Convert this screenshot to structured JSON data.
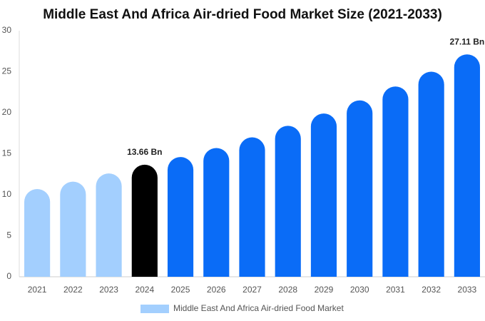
{
  "chart_data": {
    "type": "bar",
    "title": "Middle East And Africa Air-dried Food Market Size (2021-2033)",
    "categories": [
      "2021",
      "2022",
      "2023",
      "2024",
      "2025",
      "2026",
      "2027",
      "2028",
      "2029",
      "2030",
      "2031",
      "2032",
      "2033"
    ],
    "series": [
      {
        "name": "Middle East And Africa Air-dried Food Market",
        "color": "#a3cffe",
        "colors": [
          "#a3cffe",
          "#a3cffe",
          "#a3cffe",
          "#000000",
          "#0a6cf7",
          "#0a6cf7",
          "#0a6cf7",
          "#0a6cf7",
          "#0a6cf7",
          "#0a6cf7",
          "#0a6cf7",
          "#0a6cf7",
          "#0a6cf7"
        ],
        "values": [
          10.7,
          11.6,
          12.6,
          13.66,
          14.6,
          15.7,
          17.0,
          18.4,
          19.9,
          21.5,
          23.2,
          25.0,
          27.11
        ],
        "value_labels": [
          null,
          null,
          null,
          "13.66 Bn",
          null,
          null,
          null,
          null,
          null,
          null,
          null,
          null,
          "27.11 Bn"
        ]
      }
    ],
    "ylim": [
      0,
      30
    ],
    "yticks": [
      0,
      5,
      10,
      15,
      20,
      25,
      30
    ],
    "grid": false,
    "legend": "bottom"
  }
}
